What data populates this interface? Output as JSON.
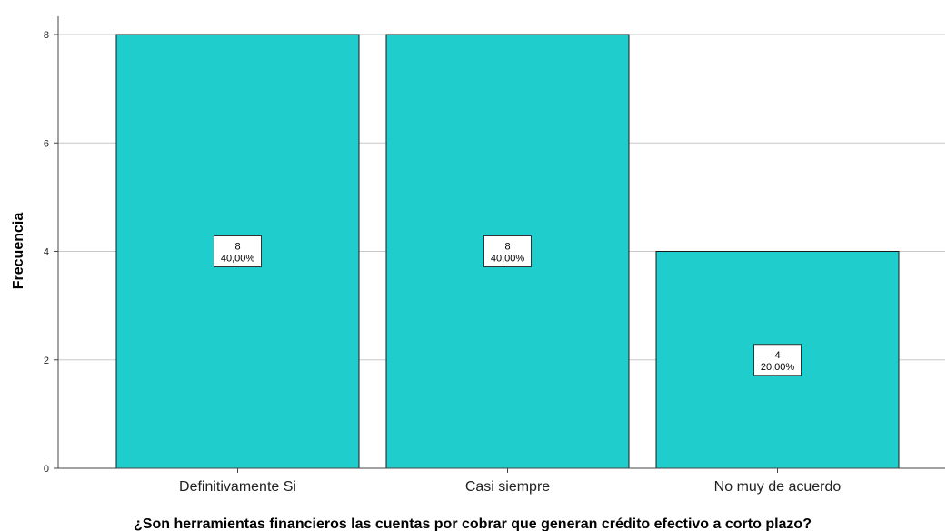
{
  "chart_data": {
    "type": "bar",
    "categories": [
      "Definitivamente Si",
      "Casi siempre",
      "No muy de acuerdo"
    ],
    "values": [
      8,
      8,
      4
    ],
    "percentages": [
      "40,00%",
      "40,00%",
      "20,00%"
    ],
    "xlabel": "¿Son herramientas financieros las cuentas por cobrar que generan crédito efectivo a corto plazo?",
    "ylabel": "Frecuencia",
    "ylim": [
      0,
      8
    ],
    "yticks": [
      0,
      2,
      4,
      6,
      8
    ],
    "grid": true,
    "bar_color": "#1fcdcd"
  }
}
